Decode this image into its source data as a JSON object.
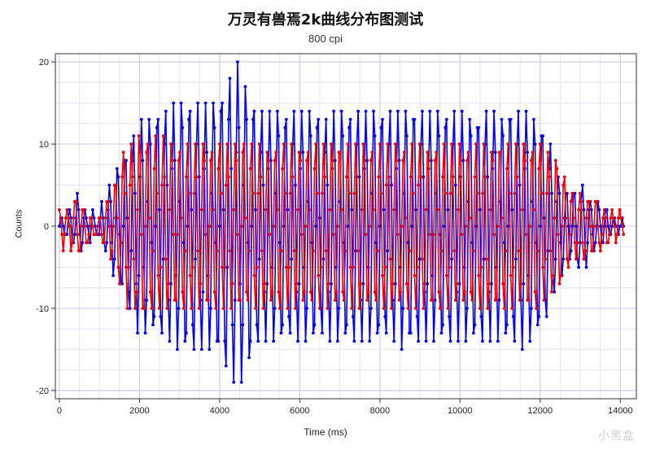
{
  "chart_data": {
    "type": "line",
    "title": "万灵有兽焉2k曲线分布图测试",
    "subtitle": "800 cpi",
    "xlabel": "Time (ms)",
    "ylabel": "Counts",
    "xlim": [
      -100,
      14400
    ],
    "ylim": [
      -21,
      21
    ],
    "x_ticks": [
      "0",
      "2000",
      "4000",
      "6000",
      "8000",
      "10000",
      "12000",
      "14000"
    ],
    "y_ticks": [
      "20",
      "10",
      "0",
      "-10",
      "-20"
    ],
    "grid": true,
    "series": [
      {
        "color": "#0000ee",
        "marker": "circle",
        "envelope": {
          "x": [
            0,
            300,
            450,
            700,
            1000,
            1300,
            1600,
            2000,
            2500,
            3000,
            3500,
            4000,
            4300,
            4450,
            5000,
            6000,
            7000,
            8000,
            9000,
            10000,
            11000,
            11500,
            12000,
            12300,
            12400,
            12700,
            13100,
            13500,
            14100
          ],
          "amplitude": [
            1,
            2,
            4,
            2,
            1.5,
            5,
            9,
            13,
            14,
            15,
            15,
            16,
            19,
            20,
            14,
            14,
            14,
            14.5,
            14.5,
            14,
            14,
            15,
            13,
            10,
            7,
            4,
            5,
            2,
            0.5
          ]
        },
        "period_ms": 200
      },
      {
        "color": "#ee0000",
        "marker": "circle",
        "envelope": {
          "x": [
            0,
            500,
            900,
            1300,
            1600,
            2000,
            3000,
            4000,
            5000,
            6000,
            7000,
            8000,
            9000,
            10000,
            11000,
            12000,
            12400,
            12800,
            13100,
            13500,
            14100
          ],
          "amplitude": [
            2,
            3,
            1,
            4,
            9,
            11,
            10,
            10,
            10,
            10,
            10,
            10,
            10,
            10,
            10,
            10,
            8,
            4,
            4,
            3,
            1
          ]
        },
        "period_ms": 200
      }
    ]
  },
  "watermark": "小黑盒"
}
